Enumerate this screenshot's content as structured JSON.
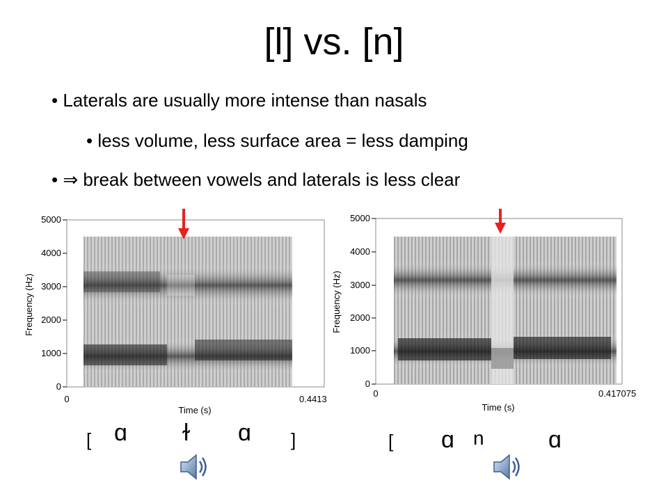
{
  "slide": {
    "title": "[l] vs. [n]",
    "bullets": [
      "• Laterals are usually more intense than nasals",
      "• less volume, less surface area = less damping",
      "• ⇒ break between vowels and laterals is less clear"
    ]
  },
  "spectrograms": [
    {
      "ylabel": "Frequency (Hz)",
      "xlabel": "Time (s)",
      "yticks": [
        "5000",
        "4000",
        "3000",
        "2000",
        "1000",
        "0"
      ],
      "x_start": "0",
      "x_end": "0.4413",
      "transcription": [
        "[",
        "ɑ",
        "ɫ",
        "ɑ",
        "]"
      ],
      "arrow_color": "#e8211f",
      "speaker_icon": "speaker-icon"
    },
    {
      "ylabel": "Frequency (Hz)",
      "xlabel": "Time (s)",
      "yticks": [
        "5000",
        "4000",
        "3000",
        "2000",
        "1000",
        "0"
      ],
      "x_start": "0",
      "x_end": "0.417075",
      "transcription": [
        "[",
        "ɑ",
        "n",
        "ɑ"
      ],
      "arrow_color": "#e8211f",
      "speaker_icon": "speaker-icon"
    }
  ]
}
